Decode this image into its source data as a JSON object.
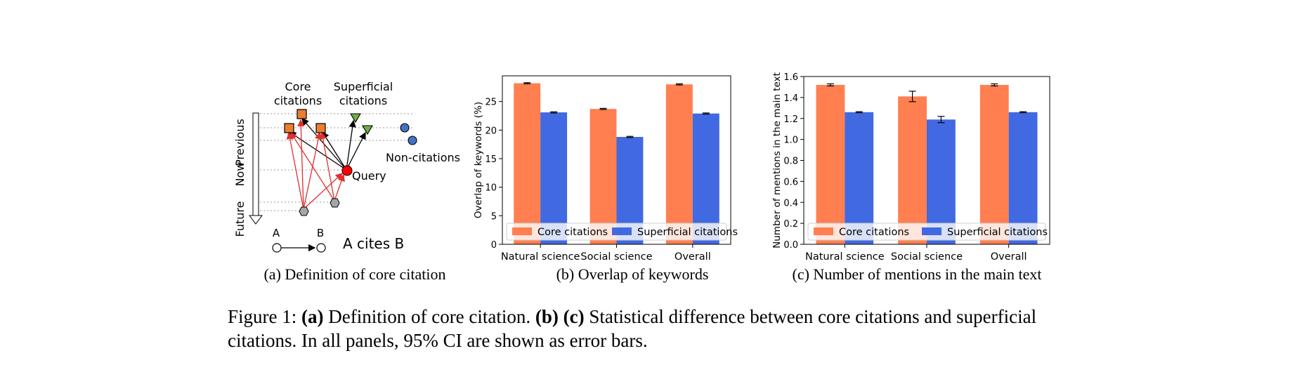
{
  "diagram": {
    "core_label_line1": "Core",
    "core_label_line2": "citations",
    "superficial_label_line1": "Superficial",
    "superficial_label_line2": "citations",
    "noncitation_label": "Non-citations",
    "query_label": "Query",
    "time_previous": "Previous",
    "time_now": "Now",
    "time_future": "Future",
    "legend_a": "A",
    "legend_b": "B",
    "legend_text": "A cites B",
    "colors": {
      "core": "#ed7d31",
      "superficial": "#70ad47",
      "noncitation": "#4472c4",
      "query": "#ff0000",
      "future": "#a6a6a6",
      "red_arrow": "#e03030"
    }
  },
  "subcaptions": {
    "a": "(a) Definition of core citation",
    "b": "(b) Overlap of keywords",
    "c": "(c) Number of mentions in the main text"
  },
  "caption": {
    "prefix": "Figure 1: ",
    "a_tag": "(a)",
    "a_text": " Definition of core citation. ",
    "b_tag": "(b)",
    "c_tag": "(c)",
    "rest": " Statistical difference between core citations and superficial citations. In all panels, 95% CI are shown as error bars."
  },
  "chart_data": [
    {
      "type": "bar",
      "categories": [
        "Natural science",
        "Social science",
        "Overall"
      ],
      "series": [
        {
          "name": "Core citations",
          "values": [
            28.2,
            23.7,
            28.0
          ],
          "errors": [
            0.1,
            0.1,
            0.1
          ],
          "color": "#ff7f50"
        },
        {
          "name": "Superficial citations",
          "values": [
            23.1,
            18.8,
            22.9
          ],
          "errors": [
            0.1,
            0.1,
            0.1
          ],
          "color": "#4169e1"
        }
      ],
      "ylabel": "Overlap of keywords (%)",
      "ylim": [
        0,
        29.5
      ],
      "yticks": [
        "0",
        "5",
        "10",
        "15",
        "20",
        "25"
      ],
      "ytick_values": [
        0,
        5,
        10,
        15,
        20,
        25
      ],
      "grid": false,
      "legend_position": "bottom"
    },
    {
      "type": "bar",
      "categories": [
        "Natural science",
        "Social science",
        "Overall"
      ],
      "series": [
        {
          "name": "Core citations",
          "values": [
            1.52,
            1.41,
            1.52
          ],
          "errors": [
            0.01,
            0.05,
            0.01
          ],
          "color": "#ff7f50"
        },
        {
          "name": "Superficial citations",
          "values": [
            1.26,
            1.19,
            1.26
          ],
          "errors": [
            0.005,
            0.03,
            0.005
          ],
          "color": "#4169e1"
        }
      ],
      "ylabel": "Number of mentions in the main text",
      "ylim": [
        0,
        1.6
      ],
      "yticks": [
        "0.0",
        "0.2",
        "0.4",
        "0.6",
        "0.8",
        "1.0",
        "1.2",
        "1.4",
        "1.6"
      ],
      "ytick_values": [
        0,
        0.2,
        0.4,
        0.6,
        0.8,
        1.0,
        1.2,
        1.4,
        1.6
      ],
      "grid": false,
      "legend_position": "bottom"
    }
  ]
}
